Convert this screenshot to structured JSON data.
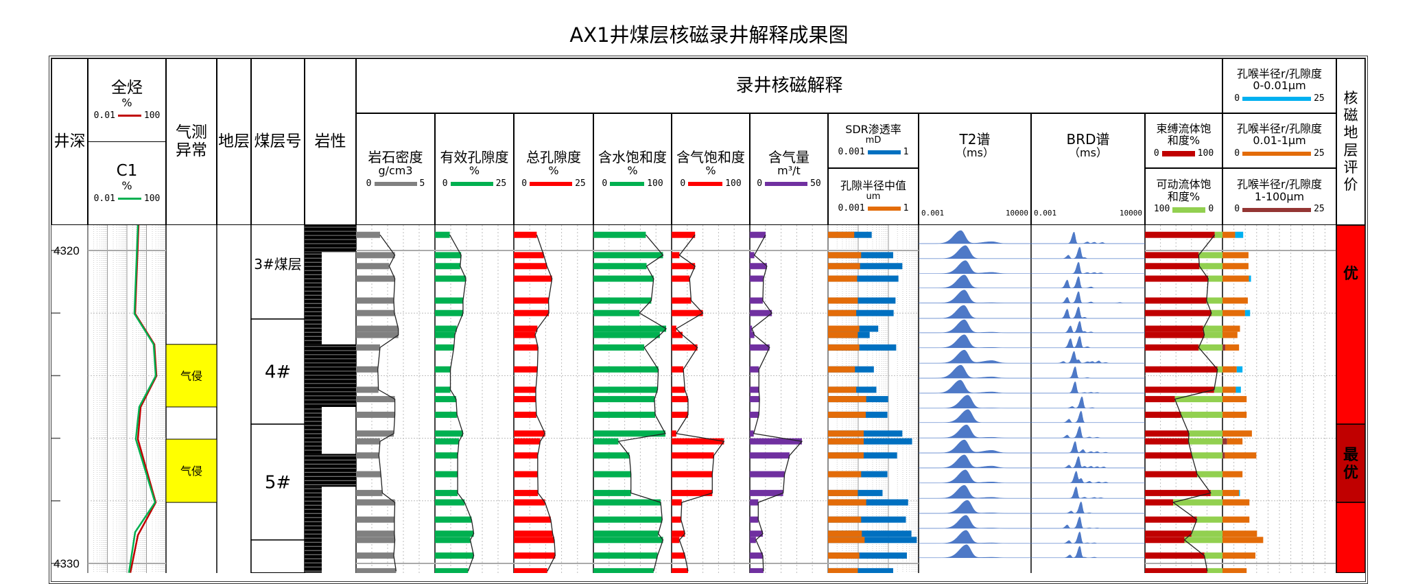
{
  "title": "AX1井煤层核磁录井解释成果图",
  "header": {
    "depth": "井深",
    "total_hc": {
      "name": "全烃",
      "unit": "%",
      "min": "0.01",
      "max": "100",
      "color": "#C00000"
    },
    "c1": {
      "name": "C1",
      "unit": "%",
      "min": "0.01",
      "max": "100",
      "color": "#00B050"
    },
    "gas_anomaly": "气测异常",
    "formation": "地层",
    "seam_no": "煤层号",
    "lithology": "岩性",
    "nmr_group": "录井核磁解释",
    "density": {
      "name": "岩石密度",
      "unit": "g/cm3",
      "min": "0",
      "max": "5",
      "color": "#808080"
    },
    "eff_por": {
      "name": "有效孔隙度",
      "unit": "%",
      "min": "0",
      "max": "25",
      "color": "#00B050"
    },
    "tot_por": {
      "name": "总孔隙度",
      "unit": "%",
      "min": "0",
      "max": "25",
      "color": "#FF0000"
    },
    "sw": {
      "name": "含水饱和度",
      "unit": "%",
      "min": "0",
      "max": "100",
      "color": "#00B050"
    },
    "sg": {
      "name": "含气饱和度",
      "unit": "%",
      "min": "0",
      "max": "100",
      "color": "#FF0000"
    },
    "gas": {
      "name": "含气量",
      "unit": "m³/t",
      "min": "0",
      "max": "50",
      "color": "#7030A0"
    },
    "sdr": {
      "name": "SDR渗透率",
      "unit": "mD",
      "min": "0.001",
      "max": "1",
      "color": "#0070C0"
    },
    "pore_median": {
      "name": "孔隙半径中值",
      "unit": "um",
      "min": "0.001",
      "max": "1",
      "color": "#E36C09"
    },
    "t2": {
      "name": "T2谱",
      "unit": "（ms）",
      "min": "0.001",
      "max": "10000"
    },
    "brd": {
      "name": "BRD谱",
      "unit": "（ms）",
      "min": "0.001",
      "max": "10000"
    },
    "bound": {
      "name": "束缚流体饱和度%",
      "min": "0",
      "max": "100",
      "color": "#C00000"
    },
    "movable": {
      "name": "可动流体饱和度%",
      "min": "100",
      "max": "0",
      "color": "#92D050"
    },
    "pt_small": {
      "name": "孔喉半径r/孔隙度",
      "range": "0-0.01μm",
      "min": "0",
      "max": "25",
      "color": "#00B0F0"
    },
    "pt_mid": {
      "name": "孔喉半径r/孔隙度",
      "range": "0.01-1μm",
      "min": "0",
      "max": "25",
      "color": "#E36C09"
    },
    "pt_large": {
      "name": "孔喉半径r/孔隙度",
      "range": "1-100μm",
      "min": "0",
      "max": "25",
      "color": "#943634"
    },
    "evaluation": "核磁地层评价"
  },
  "chart_data": {
    "type": "well-log",
    "depth_unit": "m",
    "depth_range": [
      4319.2,
      4330.3
    ],
    "depth_ticks": [
      4320,
      4322,
      4324,
      4326,
      4328,
      4330
    ],
    "depth_labels": [
      "4320",
      "4330"
    ],
    "grid": true,
    "gas_curves": {
      "scale": "log",
      "total_hc": {
        "depths": [
          4319.19,
          4322.02,
          4323.0,
          4324.01,
          4325.0,
          4326.03,
          4328.05,
          4329.1,
          4330.3
        ],
        "values": [
          3.94,
          2.64,
          25.3,
          32.3,
          5.03,
          3.64,
          29.8,
          3.64,
          1.5
        ]
      },
      "c1": {
        "depths": [
          4319.19,
          4322.02,
          4323.0,
          4324.01,
          4325.0,
          4326.03,
          4328.05,
          4329.0,
          4330.3
        ],
        "values": [
          3.64,
          2.43,
          23.3,
          29.8,
          4.28,
          2.86,
          27.5,
          2.64,
          1.27
        ]
      }
    },
    "gas_anomalies": [
      {
        "top": 4323.0,
        "bottom": 4325.0,
        "label": "气侵",
        "color": "#FFFF00"
      },
      {
        "top": 4326.03,
        "bottom": 4328.05,
        "label": "气侵",
        "color": "#FFFF00"
      }
    ],
    "seams": [
      {
        "top": 4318.6,
        "bottom": 4322.19,
        "label": "3#煤层"
      },
      {
        "top": 4322.19,
        "bottom": 4325.55,
        "label": "4#"
      },
      {
        "top": 4325.55,
        "bottom": 4329.25,
        "label": "5#"
      },
      {
        "top": 4329.25,
        "bottom": 4330.3,
        "label": ""
      }
    ],
    "lithology": [
      {
        "top": 4319.19,
        "bottom": 4320.05,
        "coal": true
      },
      {
        "top": 4320.05,
        "bottom": 4323.0,
        "coal": false
      },
      {
        "top": 4323.0,
        "bottom": 4325.0,
        "coal": true
      },
      {
        "top": 4325.0,
        "bottom": 4326.5,
        "coal": false
      },
      {
        "top": 4326.5,
        "bottom": 4327.55,
        "coal": true
      },
      {
        "top": 4327.55,
        "bottom": 4330.3,
        "coal": false
      }
    ],
    "samples": {
      "depths": [
        4319.5,
        4320.15,
        4320.5,
        4320.9,
        4321.6,
        4322.0,
        4322.5,
        4322.7,
        4323.1,
        4323.8,
        4324.45,
        4324.75,
        4325.25,
        4325.85,
        4326.1,
        4326.55,
        4327.15,
        4327.75,
        4328.05,
        4328.6,
        4329.05,
        4329.25,
        4329.75,
        4330.25
      ],
      "density": [
        1.52,
        2.46,
        2.1,
        2.46,
        2.39,
        2.43,
        2.68,
        2.68,
        1.52,
        1.38,
        1.42,
        2.46,
        2.46,
        2.39,
        1.52,
        1.45,
        1.57,
        1.67,
        2.46,
        2.43,
        2.43,
        2.46,
        2.39,
        2.54
      ],
      "eff_por": [
        4.7,
        8.3,
        8.0,
        9.8,
        8.9,
        8.9,
        6.9,
        6.3,
        6.0,
        4.9,
        4.9,
        6.7,
        7.0,
        8.9,
        7.6,
        7.2,
        7.2,
        7.2,
        9.4,
        11.6,
        12.3,
        11.2,
        12.3,
        10.5
      ],
      "tot_por": [
        7.2,
        9.4,
        10.4,
        12.0,
        10.9,
        11.0,
        7.4,
        6.7,
        7.6,
        7.4,
        6.9,
        6.9,
        7.1,
        9.8,
        8.3,
        7.5,
        7.5,
        7.6,
        9.8,
        11.6,
        12.2,
        12.7,
        13.0,
        10.5
      ],
      "sw": [
        67,
        89,
        68,
        77,
        74,
        59,
        93,
        85,
        65,
        83,
        82,
        78,
        79,
        92,
        32,
        46,
        48,
        48,
        86,
        88,
        83,
        89,
        82,
        77
      ],
      "sg": [
        30,
        10,
        30,
        23,
        25,
        40,
        6,
        14,
        33,
        15,
        17,
        21,
        21,
        6,
        67,
        54,
        52,
        52,
        13,
        12,
        17,
        10,
        17,
        21
      ],
      "gas": [
        10.1,
        2.9,
        10.9,
        8.7,
        8.3,
        14.1,
        1.4,
        2.9,
        12.6,
        5.8,
        5.8,
        6.2,
        5.8,
        2.5,
        33.3,
        25.4,
        22.2,
        21.3,
        5.4,
        5.4,
        8.3,
        3.9,
        8.3,
        8.7
      ],
      "sdr": [
        0.028,
        0.144,
        0.29,
        0.215,
        0.172,
        0.149,
        0.046,
        0.024,
        0.181,
        0.033,
        0.04,
        0.098,
        0.093,
        0.29,
        0.61,
        0.194,
        0.093,
        0.064,
        0.45,
        0.38,
        0.58,
        0.87,
        0.41,
        0.144
      ],
      "pore_median": [
        0.0074,
        0.0125,
        0.0115,
        0.0092,
        0.0097,
        0.0086,
        0.0109,
        0.0097,
        0.0109,
        0.0078,
        0.0086,
        0.0184,
        0.0178,
        0.0152,
        0.0152,
        0.0152,
        0.0125,
        0.0097,
        0.0184,
        0.0125,
        0.0132,
        0.0163,
        0.0109,
        0.0097
      ],
      "bound": [
        90,
        69.3,
        70.2,
        81.6,
        79.5,
        85.7,
        75,
        76.6,
        69.3,
        93.6,
        89.2,
        38.6,
        46.5,
        56.7,
        56.1,
        60.5,
        67.3,
        84.8,
        36.3,
        66.9,
        60,
        50.9,
        76.6,
        80.4
      ],
      "movable": [
        10,
        30.7,
        29.8,
        18.4,
        20.5,
        14.3,
        25,
        23.4,
        30.7,
        6.4,
        10.8,
        61.4,
        53.5,
        43.3,
        43.9,
        39.5,
        32.7,
        15.2,
        63.7,
        33.1,
        40,
        49.1,
        23.4,
        19.6
      ],
      "pt_small": [
        1.77,
        0,
        0,
        0.45,
        0,
        1.11,
        0,
        0,
        0,
        1.26,
        1.11,
        0,
        0,
        0,
        0,
        0,
        0,
        0.2,
        0,
        0,
        0,
        0,
        0,
        0
      ],
      "pt_mid": [
        2.78,
        5.71,
        5.71,
        5.81,
        5.56,
        4.95,
        3.84,
        3.28,
        3.03,
        3.13,
        2.93,
        5.3,
        5.3,
        6.46,
        3.38,
        6.92,
        4.39,
        3.64,
        5.91,
        5.91,
        7.58,
        8.94,
        7.22,
        5.3
      ],
      "pt_large": [
        0,
        0,
        0,
        0,
        0,
        0,
        0,
        0,
        0.61,
        0,
        0,
        0,
        0,
        0,
        1.01,
        0.51,
        0,
        0,
        0,
        0,
        0,
        0,
        0,
        0
      ]
    },
    "spectra": {
      "depths": [
        4319.78,
        4320.26,
        4320.74,
        4321.2,
        4321.68,
        4322.17,
        4322.63,
        4323.11,
        4323.6,
        4324.08,
        4324.56,
        4325.04,
        4325.5,
        4325.99,
        4326.47,
        4326.95,
        4327.43,
        4327.92,
        4328.4,
        4328.88,
        4329.36,
        4329.82
      ],
      "t2_main_ms": [
        0.43,
        0.83,
        0.83,
        0.71,
        0.71,
        0.66,
        0.71,
        0.71,
        0.71,
        0.43,
        0.4,
        1.15,
        1.2,
        0.98,
        0.71,
        0.71,
        0.83,
        0.71,
        1.1,
        0.9,
        0.9,
        0.98
      ],
      "t2_secondary_ms": 36,
      "t2_secondary_amp": [
        0.15,
        0,
        0.1,
        0,
        0.03,
        0,
        0.05,
        0.03,
        0.2,
        0.1,
        0.1,
        0.02,
        0,
        0.05,
        0.2,
        0.15,
        0.08,
        0.08,
        0.04,
        0.03,
        0.04,
        0.04
      ],
      "brd_peaks": [
        [
          [
            0.44,
            1
          ],
          [
            3,
            0.15
          ],
          [
            8,
            0.12
          ],
          [
            25,
            0.1
          ]
        ],
        [
          [
            0.2,
            0.3
          ],
          [
            0.99,
            1
          ],
          [
            2,
            0.1
          ]
        ],
        [
          [
            0.84,
            1
          ],
          [
            3,
            0.1
          ],
          [
            8,
            0.1
          ],
          [
            20,
            0.08
          ]
        ],
        [
          [
            0.17,
            0.7
          ],
          [
            0.84,
            1
          ],
          [
            5,
            0.1
          ]
        ],
        [
          [
            0.17,
            0.5
          ],
          [
            0.84,
            1
          ],
          [
            5,
            0.1
          ],
          [
            300,
            0.05
          ]
        ],
        [
          [
            0.17,
            0.8
          ],
          [
            0.84,
            1
          ],
          [
            2,
            0.1
          ]
        ],
        [
          [
            0.27,
            0.6
          ],
          [
            0.99,
            1
          ],
          [
            2,
            0.12
          ],
          [
            5,
            0.08
          ]
        ],
        [
          [
            0.27,
            0.8
          ],
          [
            0.99,
            1
          ],
          [
            3,
            0.1
          ]
        ],
        [
          [
            0.1,
            0.15
          ],
          [
            0.44,
            1
          ],
          [
            0.84,
            0.3
          ],
          [
            3,
            0.12
          ],
          [
            6,
            0.15
          ],
          [
            15,
            0.2
          ],
          [
            40,
            0.06
          ]
        ],
        [
          [
            0.52,
            1
          ],
          [
            3,
            0.05
          ]
        ],
        [
          [
            0.52,
            1
          ],
          [
            2,
            0.06
          ],
          [
            5,
            0.08
          ],
          [
            12,
            0.06
          ]
        ],
        [
          [
            0.35,
            0.15
          ],
          [
            1.36,
            1
          ],
          [
            6,
            0.05
          ]
        ],
        [
          [
            0.22,
            0.3
          ],
          [
            1.2,
            1
          ]
        ],
        [
          [
            0.17,
            0.25
          ],
          [
            0.99,
            1
          ],
          [
            4,
            0.08
          ],
          [
            12,
            0.06
          ]
        ],
        [
          [
            0.52,
            1
          ],
          [
            1.6,
            0.3
          ],
          [
            5,
            0.12
          ],
          [
            12,
            0.12
          ],
          [
            40,
            0.06
          ]
        ],
        [
          [
            0.22,
            0.25
          ],
          [
            0.84,
            1
          ],
          [
            2,
            0.15
          ],
          [
            5,
            0.15
          ],
          [
            12,
            0.12
          ],
          [
            30,
            0.1
          ]
        ],
        [
          [
            0.6,
            1
          ],
          [
            1.2,
            0.4
          ],
          [
            4,
            0.15
          ],
          [
            15,
            0.1
          ],
          [
            40,
            0.08
          ]
        ],
        [
          [
            0.6,
            1
          ],
          [
            2,
            0.1
          ],
          [
            8,
            0.08
          ],
          [
            20,
            0.06
          ]
        ],
        [
          [
            0.3,
            0.2
          ],
          [
            1.2,
            1
          ],
          [
            4,
            0.05
          ]
        ],
        [
          [
            0.17,
            0.3
          ],
          [
            0.99,
            1
          ],
          [
            4,
            0.05
          ],
          [
            12,
            0.04
          ]
        ],
        [
          [
            0.22,
            0.25
          ],
          [
            0.99,
            1
          ],
          [
            3,
            0.05
          ],
          [
            8,
            0.05
          ]
        ],
        [
          [
            0.25,
            0.25
          ],
          [
            0.99,
            1
          ],
          [
            2,
            0.05
          ],
          [
            8,
            0.05
          ]
        ]
      ],
      "color": "#4472C4"
    },
    "evaluation": [
      {
        "top": 4319.19,
        "bottom": 4325.55,
        "label": "优",
        "color": "#FF0000"
      },
      {
        "top": 4325.55,
        "bottom": 4328.05,
        "label": "最优",
        "color": "#C00000"
      },
      {
        "top": 4328.05,
        "bottom": 4330.3,
        "label": "",
        "color": "#FF0000"
      }
    ]
  }
}
